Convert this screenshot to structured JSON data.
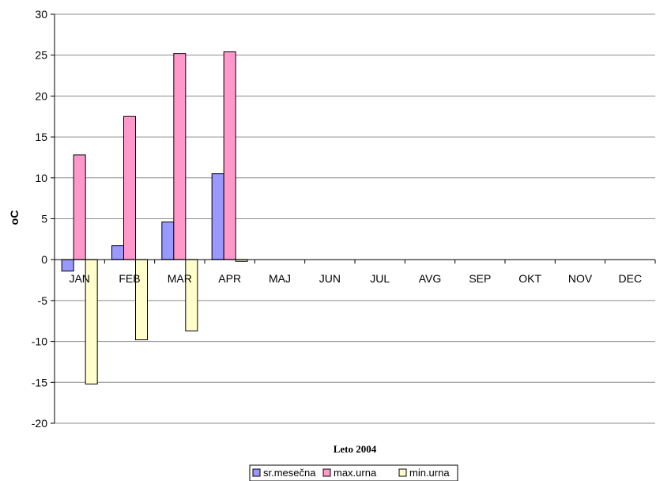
{
  "chart_data": {
    "type": "bar",
    "title": "",
    "xlabel": "Leto 2004",
    "ylabel": "oC",
    "ylim": [
      -20,
      30
    ],
    "yticks": [
      30,
      25,
      20,
      15,
      10,
      5,
      0,
      -5,
      -10,
      -15,
      -20
    ],
    "grid": true,
    "legend_position": "bottom",
    "categories": [
      "JAN",
      "FEB",
      "MAR",
      "APR",
      "MAJ",
      "JUN",
      "JUL",
      "AVG",
      "SEP",
      "OKT",
      "NOV",
      "DEC"
    ],
    "series": [
      {
        "name": "sr.mesečna",
        "color": "#9999ff",
        "values": [
          -1.4,
          1.7,
          4.6,
          10.5,
          null,
          null,
          null,
          null,
          null,
          null,
          null,
          null
        ]
      },
      {
        "name": "max.urna",
        "color": "#ff99cc",
        "values": [
          12.8,
          17.5,
          25.2,
          25.4,
          null,
          null,
          null,
          null,
          null,
          null,
          null,
          null
        ]
      },
      {
        "name": "min.urna",
        "color": "#ffffcc",
        "values": [
          -15.2,
          -9.8,
          -8.7,
          -0.2,
          null,
          null,
          null,
          null,
          null,
          null,
          null,
          null
        ]
      }
    ]
  }
}
